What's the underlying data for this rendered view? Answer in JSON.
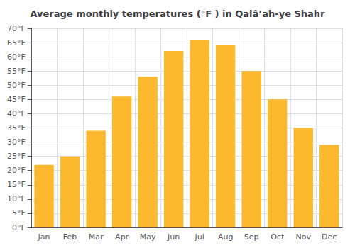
{
  "chart_data": {
    "type": "bar",
    "title": "Average monthly temperatures (°F ) in Qalâ’ah-ye Shahr",
    "categories": [
      "Jan",
      "Feb",
      "Mar",
      "Apr",
      "May",
      "Jun",
      "Jul",
      "Aug",
      "Sep",
      "Oct",
      "Nov",
      "Dec"
    ],
    "values": [
      22,
      25,
      34,
      46,
      53,
      62,
      66,
      64,
      55,
      45,
      35,
      29
    ],
    "color": "#FDB92E",
    "ylim": [
      0,
      70
    ],
    "yticks": [
      {
        "value": 0,
        "label": "0°F"
      },
      {
        "value": 5,
        "label": "5°F"
      },
      {
        "value": 10,
        "label": "10°F"
      },
      {
        "value": 15,
        "label": "15°F"
      },
      {
        "value": 20,
        "label": "20°F"
      },
      {
        "value": 25,
        "label": "25°F"
      },
      {
        "value": 30,
        "label": "30°F"
      },
      {
        "value": 35,
        "label": "35°F"
      },
      {
        "value": 40,
        "label": "40°F"
      },
      {
        "value": 45,
        "label": "45°F"
      },
      {
        "value": 50,
        "label": "50°F"
      },
      {
        "value": 55,
        "label": "55°F"
      },
      {
        "value": 60,
        "label": "60°F"
      },
      {
        "value": 65,
        "label": "65°F"
      },
      {
        "value": 70,
        "label": "70°F"
      }
    ],
    "grid": true
  }
}
